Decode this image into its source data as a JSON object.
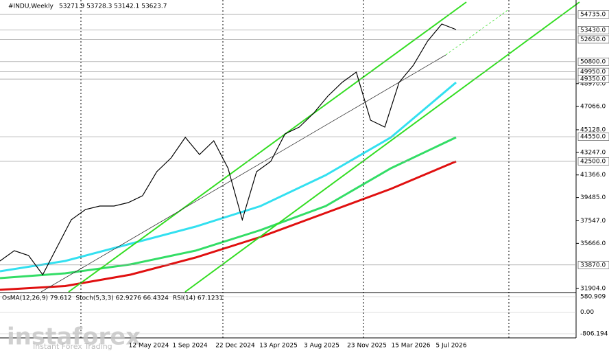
{
  "header": {
    "symbol": "#INDU,Weekly",
    "ohlc": "53271.9 53728.3 53142.1 53623.7"
  },
  "chart_data": {
    "type": "line",
    "ylim": [
      31626,
      55936
    ],
    "yticks": [
      {
        "value": 48970,
        "label": "48970.0"
      },
      {
        "value": 47066,
        "label": "47066.0"
      },
      {
        "value": 45128,
        "label": "45128.0"
      },
      {
        "value": 43247,
        "label": "43247.0"
      },
      {
        "value": 41366,
        "label": "41366.0"
      },
      {
        "value": 39485,
        "label": "39485.0"
      },
      {
        "value": 37547,
        "label": "37547.0"
      },
      {
        "value": 35666,
        "label": "35666.0"
      },
      {
        "value": 31904,
        "label": "31904.0"
      }
    ],
    "levels": [
      {
        "value": 54735,
        "label": "54735.0"
      },
      {
        "value": 53430,
        "label": "53430.0"
      },
      {
        "value": 52650,
        "label": "52650.0"
      },
      {
        "value": 50800,
        "label": "50800.0"
      },
      {
        "value": 49950,
        "label": "49950.0"
      },
      {
        "value": 49350,
        "label": "49350.0"
      },
      {
        "value": 44550,
        "label": "44550.0"
      },
      {
        "value": 42500,
        "label": "42500.0"
      },
      {
        "value": 33870,
        "label": "33870.0"
      }
    ],
    "xticks": [
      "12 May 2024",
      "1 Sep 2024",
      "22 Dec 2024",
      "13 Apr 2025",
      "3 Aug 2025",
      "23 Nov 2025",
      "15 Mar 2026",
      "5 Jul 2026"
    ],
    "grid": true,
    "series": [
      {
        "color": "#000000",
        "values": [
          34200,
          35058,
          34658,
          33056,
          35344,
          37632,
          38490,
          38776,
          38776,
          39062,
          39634,
          41636,
          42780,
          44496,
          43066,
          44210,
          41922,
          37632,
          41636,
          42494,
          44782,
          45354,
          46498,
          47928,
          49072,
          49930,
          45926,
          45354,
          49072,
          50502,
          52504,
          53934,
          53477
        ]
      },
      {
        "color": "#33e0f0",
        "values": [
          33342,
          34200,
          35630,
          37060,
          38776,
          41350,
          44496,
          49072
        ]
      },
      {
        "color": "#33dd66",
        "values": [
          32770,
          33170,
          33914,
          35058,
          36774,
          38776,
          41922,
          44496
        ]
      },
      {
        "color": "#e01010",
        "values": [
          31798,
          32112,
          33056,
          34486,
          36202,
          38204,
          40206,
          42494
        ]
      }
    ],
    "indicator": {
      "labels": [
        "OsMA(12,26,9) 79.612",
        "Stoch(5,3,3) 62.9276 66.4324",
        "RSI(14) 67.1231"
      ],
      "ylim": [
        -806.194,
        580.909
      ],
      "yticks": [
        {
          "value": 580.909,
          "label": "580.909"
        },
        {
          "value": 0,
          "label": "0.00"
        },
        {
          "value": -806.194,
          "label": "-806.194"
        }
      ]
    }
  },
  "watermark": {
    "brand": "instaforex",
    "tagline": "Instant Forex Trading"
  }
}
